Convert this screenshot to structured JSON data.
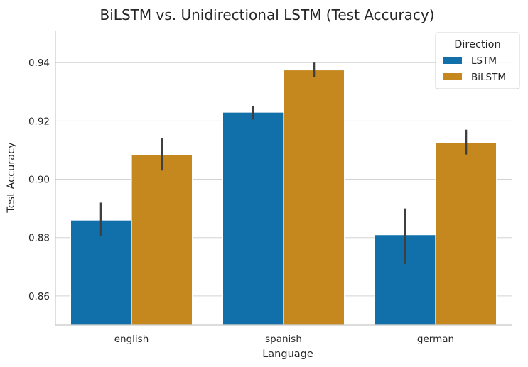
{
  "chart_data": {
    "type": "bar",
    "title": "BiLSTM vs. Unidirectional LSTM (Test Accuracy)",
    "xlabel": "Language",
    "ylabel": "Test Accuracy",
    "categories": [
      "english",
      "spanish",
      "german"
    ],
    "ylim": [
      0.85,
      0.951
    ],
    "yticks": [
      0.86,
      0.88,
      0.9,
      0.92,
      0.94
    ],
    "ytick_labels": [
      "0.86",
      "0.88",
      "0.90",
      "0.92",
      "0.94"
    ],
    "grid": "horizontal",
    "legend": {
      "title": "Direction",
      "placement": "top-right"
    },
    "series": [
      {
        "name": "LSTM",
        "color": "#1170aa",
        "values": [
          0.886,
          0.923,
          0.881
        ],
        "error_low": [
          0.8805,
          0.9205,
          0.871
        ],
        "error_high": [
          0.892,
          0.925,
          0.89
        ]
      },
      {
        "name": "BiLSTM",
        "color": "#c5881f",
        "values": [
          0.9085,
          0.9375,
          0.9125
        ],
        "error_low": [
          0.903,
          0.935,
          0.9085
        ],
        "error_high": [
          0.914,
          0.94,
          0.917
        ]
      }
    ]
  }
}
